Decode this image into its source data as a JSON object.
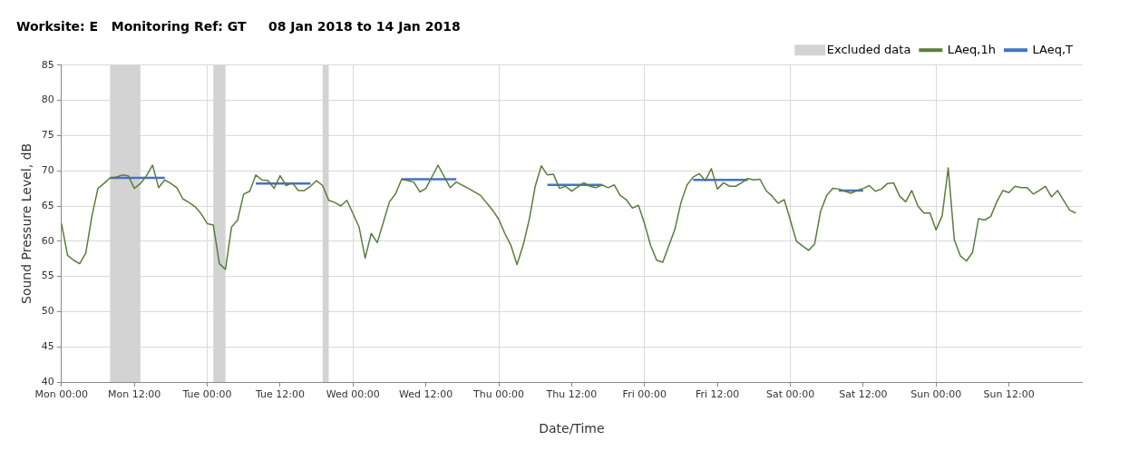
{
  "chart_data": {
    "type": "line",
    "title": "Worksite: E   Monitoring Ref: GT     08 Jan 2018 to 14 Jan 2018",
    "xlabel": "Date/Time",
    "ylabel": "Sound Pressure Level, dB",
    "xlim": [
      "2018-01-08T00:00",
      "2018-01-15T00:00"
    ],
    "xticks": [
      {
        "value": "2018-01-08T00:00",
        "label": "Mon 00:00"
      },
      {
        "value": "2018-01-08T12:00",
        "label": "Mon 12:00"
      },
      {
        "value": "2018-01-09T00:00",
        "label": "Tue 00:00"
      },
      {
        "value": "2018-01-09T12:00",
        "label": "Tue 12:00"
      },
      {
        "value": "2018-01-10T00:00",
        "label": "Wed 00:00"
      },
      {
        "value": "2018-01-10T12:00",
        "label": "Wed 12:00"
      },
      {
        "value": "2018-01-11T00:00",
        "label": "Thu 00:00"
      },
      {
        "value": "2018-01-11T12:00",
        "label": "Thu 12:00"
      },
      {
        "value": "2018-01-12T00:00",
        "label": "Fri 00:00"
      },
      {
        "value": "2018-01-12T12:00",
        "label": "Fri 12:00"
      },
      {
        "value": "2018-01-13T00:00",
        "label": "Sat 00:00"
      },
      {
        "value": "2018-01-13T12:00",
        "label": "Sat 12:00"
      },
      {
        "value": "2018-01-14T00:00",
        "label": "Sun 00:00"
      },
      {
        "value": "2018-01-14T12:00",
        "label": "Sun 12:00"
      }
    ],
    "ylim": [
      40,
      85
    ],
    "yticks": [
      40,
      45,
      50,
      55,
      60,
      65,
      70,
      75,
      80,
      85
    ],
    "grid": true,
    "legend": "top right",
    "marker": "none",
    "line_style": "solid",
    "bands": [
      {
        "axis": "x",
        "from": "2018-01-08T08:00",
        "to": "2018-01-08T13:00",
        "label": "Excluded data",
        "color": "#d3d3d3"
      },
      {
        "axis": "x",
        "from": "2018-01-09T01:00",
        "to": "2018-01-09T03:00",
        "color": "#d3d3d3"
      },
      {
        "axis": "x",
        "from": "2018-01-09T19:00",
        "to": "2018-01-09T20:00",
        "color": "#d3d3d3"
      }
    ],
    "series": [
      {
        "name": "LAeq,1h",
        "color": "#5a7d3c",
        "x": [
          "2018-01-08T00:00",
          "2018-01-08T01:00",
          "2018-01-08T02:00",
          "2018-01-08T03:00",
          "2018-01-08T04:00",
          "2018-01-08T05:00",
          "2018-01-08T06:00",
          "2018-01-08T07:00",
          "2018-01-08T08:00",
          "2018-01-08T09:00",
          "2018-01-08T10:00",
          "2018-01-08T11:00",
          "2018-01-08T12:00",
          "2018-01-08T13:00",
          "2018-01-08T14:00",
          "2018-01-08T15:00",
          "2018-01-08T16:00",
          "2018-01-08T17:00",
          "2018-01-08T18:00",
          "2018-01-08T19:00",
          "2018-01-08T20:00",
          "2018-01-08T21:00",
          "2018-01-08T22:00",
          "2018-01-08T23:00",
          "2018-01-09T00:00",
          "2018-01-09T01:00",
          "2018-01-09T02:00",
          "2018-01-09T03:00",
          "2018-01-09T04:00",
          "2018-01-09T05:00",
          "2018-01-09T06:00",
          "2018-01-09T07:00",
          "2018-01-09T08:00",
          "2018-01-09T09:00",
          "2018-01-09T10:00",
          "2018-01-09T11:00",
          "2018-01-09T12:00",
          "2018-01-09T13:00",
          "2018-01-09T14:00",
          "2018-01-09T15:00",
          "2018-01-09T16:00",
          "2018-01-09T17:00",
          "2018-01-09T18:00",
          "2018-01-09T19:00",
          "2018-01-09T20:00",
          "2018-01-09T21:00",
          "2018-01-09T22:00",
          "2018-01-09T23:00",
          "2018-01-10T01:00",
          "2018-01-10T02:00",
          "2018-01-10T03:00",
          "2018-01-10T04:00",
          "2018-01-10T06:00",
          "2018-01-10T07:00",
          "2018-01-10T08:00",
          "2018-01-10T10:00",
          "2018-01-10T11:00",
          "2018-01-10T12:00",
          "2018-01-10T14:00",
          "2018-01-10T16:00",
          "2018-01-10T17:00",
          "2018-01-10T19:00",
          "2018-01-10T21:00",
          "2018-01-10T23:00",
          "2018-01-11T00:00",
          "2018-01-11T01:00",
          "2018-01-11T02:00",
          "2018-01-11T03:00",
          "2018-01-11T04:00",
          "2018-01-11T05:00",
          "2018-01-11T06:00",
          "2018-01-11T07:00",
          "2018-01-11T08:00",
          "2018-01-11T09:00",
          "2018-01-11T10:00",
          "2018-01-11T11:00",
          "2018-01-11T12:00",
          "2018-01-11T14:00",
          "2018-01-11T15:00",
          "2018-01-11T16:00",
          "2018-01-11T17:00",
          "2018-01-11T18:00",
          "2018-01-11T19:00",
          "2018-01-11T20:00",
          "2018-01-11T21:00",
          "2018-01-11T22:00",
          "2018-01-11T23:00",
          "2018-01-12T00:00",
          "2018-01-12T01:00",
          "2018-01-12T02:00",
          "2018-01-12T03:00",
          "2018-01-12T05:00",
          "2018-01-12T06:00",
          "2018-01-12T07:00",
          "2018-01-12T08:00",
          "2018-01-12T09:00",
          "2018-01-12T10:00",
          "2018-01-12T11:00",
          "2018-01-12T12:00",
          "2018-01-12T13:00",
          "2018-01-12T14:00",
          "2018-01-12T15:00",
          "2018-01-12T16:00",
          "2018-01-12T17:00",
          "2018-01-12T18:00",
          "2018-01-12T19:00",
          "2018-01-12T20:00",
          "2018-01-12T21:00",
          "2018-01-12T22:00",
          "2018-01-12T23:00",
          "2018-01-13T00:00",
          "2018-01-13T01:00",
          "2018-01-13T03:00",
          "2018-01-13T04:00",
          "2018-01-13T05:00",
          "2018-01-13T06:00",
          "2018-01-13T07:00",
          "2018-01-13T08:00",
          "2018-01-13T09:00",
          "2018-01-13T10:00",
          "2018-01-13T11:00",
          "2018-01-13T12:00",
          "2018-01-13T13:00",
          "2018-01-13T14:00",
          "2018-01-13T15:00",
          "2018-01-13T16:00",
          "2018-01-13T17:00",
          "2018-01-13T18:00",
          "2018-01-13T19:00",
          "2018-01-13T20:00",
          "2018-01-13T21:00",
          "2018-01-13T22:00",
          "2018-01-13T23:00",
          "2018-01-14T00:00",
          "2018-01-14T01:00",
          "2018-01-14T02:00",
          "2018-01-14T03:00",
          "2018-01-14T04:00",
          "2018-01-14T05:00",
          "2018-01-14T06:00",
          "2018-01-14T07:00",
          "2018-01-14T08:00",
          "2018-01-14T09:00",
          "2018-01-14T10:00",
          "2018-01-14T11:00",
          "2018-01-14T12:00",
          "2018-01-14T13:00",
          "2018-01-14T14:00",
          "2018-01-14T15:00",
          "2018-01-14T16:00",
          "2018-01-14T17:00",
          "2018-01-14T18:00",
          "2018-01-14T19:00",
          "2018-01-14T20:00",
          "2018-01-14T21:00",
          "2018-01-14T22:00",
          "2018-01-14T23:00"
        ],
        "values": [
          62.5,
          58,
          57.3,
          56.8,
          58.3,
          63.5,
          67.5,
          68.2,
          69,
          69.1,
          69.4,
          69.3,
          67.5,
          68.2,
          69.3,
          70.8,
          67.6,
          68.7,
          68.2,
          67.6,
          66,
          65.5,
          64.9,
          63.9,
          62.5,
          62.3,
          56.8,
          56,
          62,
          63,
          66.7,
          67.1,
          69.4,
          68.7,
          68.6,
          67.5,
          69.3,
          67.9,
          68.3,
          67.2,
          67.2,
          67.8,
          68.6,
          67.9,
          65.8,
          65.5,
          65,
          65.8,
          62,
          57.6,
          61.1,
          59.8,
          65.6,
          66.7,
          68.8,
          68.4,
          67,
          67.5,
          70.8,
          67.6,
          68.4,
          67.5,
          66.5,
          64.4,
          63.1,
          61.1,
          59.4,
          56.7,
          59.4,
          63,
          67.8,
          70.7,
          69.4,
          69.5,
          67.5,
          67.8,
          67.1,
          68.3,
          67.8,
          67.6,
          68,
          67.6,
          68,
          66.5,
          65.9,
          64.7,
          65.1,
          62.5,
          59.4,
          57.3,
          57,
          61.7,
          65.5,
          68,
          69.1,
          69.6,
          68.6,
          70.3,
          67.4,
          68.3,
          67.8,
          67.8,
          68.3,
          68.9,
          68.7,
          68.8,
          67.2,
          66.4,
          65.4,
          65.9,
          63,
          60,
          58.7,
          59.6,
          64.3,
          66.5,
          67.5,
          67.4,
          67.1,
          66.8,
          67.2,
          67.5,
          67.9,
          67.1,
          67.4,
          68.2,
          68.3,
          66.4,
          65.6,
          67.2,
          65,
          64,
          64,
          61.6,
          63.6,
          70.4,
          60.2,
          57.9,
          57.2,
          58.4,
          63.2,
          63,
          63.5,
          65.6,
          67.2,
          66.9,
          67.8,
          67.6,
          67.6,
          66.7,
          67.2,
          67.8,
          66.3,
          67.2,
          65.8,
          64.4,
          64
        ]
      },
      {
        "name": "LAeq,T",
        "color": "#4472c4",
        "x": [
          "2018-01-08T08:00",
          "2018-01-08T17:00",
          "2018-01-09T00:00",
          "2018-01-09T08:00",
          "2018-01-09T17:00",
          "2018-01-10T00:00",
          "2018-01-10T08:00",
          "2018-01-10T17:00",
          "2018-01-11T00:00",
          "2018-01-11T08:00",
          "2018-01-11T17:00",
          "2018-01-12T00:00",
          "2018-01-12T08:00",
          "2018-01-12T17:00",
          "2018-01-13T00:00",
          "2018-01-13T08:00",
          "2018-01-13T12:00"
        ],
        "values": [
          69,
          69,
          null,
          68.2,
          68.2,
          null,
          68.8,
          68.8,
          null,
          68,
          68,
          null,
          68.7,
          68.7,
          null,
          67.2,
          67.2
        ]
      }
    ]
  }
}
